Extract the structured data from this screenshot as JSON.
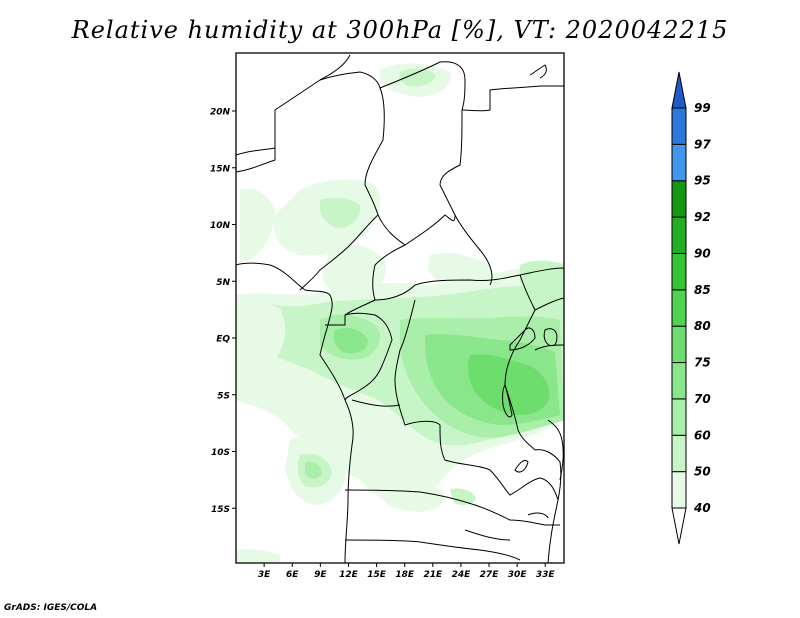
{
  "title": "Relative humidity at 300hPa [%], VT: 2020042215",
  "credit": "GrADS: IGES/COLA",
  "map": {
    "lat_labels": [
      {
        "label": "20N",
        "lat": 20
      },
      {
        "label": "15N",
        "lat": 15
      },
      {
        "label": "10N",
        "lat": 10
      },
      {
        "label": "5N",
        "lat": 5
      },
      {
        "label": "EQ",
        "lat": 0
      },
      {
        "label": "5S",
        "lat": -5
      },
      {
        "label": "10S",
        "lat": -10
      },
      {
        "label": "15S",
        "lat": -15
      }
    ],
    "lon_labels": [
      {
        "label": "3E",
        "lon": 3
      },
      {
        "label": "6E",
        "lon": 6
      },
      {
        "label": "9E",
        "lon": 9
      },
      {
        "label": "12E",
        "lon": 12
      },
      {
        "label": "15E",
        "lon": 15
      },
      {
        "label": "18E",
        "lon": 18
      },
      {
        "label": "21E",
        "lon": 21
      },
      {
        "label": "24E",
        "lon": 24
      },
      {
        "label": "27E",
        "lon": 27
      },
      {
        "label": "30E",
        "lon": 30
      },
      {
        "label": "33E",
        "lon": 33
      }
    ],
    "lon_range": [
      0,
      35
    ],
    "lat_range": [
      -20,
      25
    ]
  },
  "colorbar": {
    "levels": [
      "40",
      "50",
      "60",
      "70",
      "75",
      "80",
      "85",
      "90",
      "92",
      "95",
      "97",
      "99"
    ],
    "colors": [
      "#ffffff",
      "#e6fae6",
      "#c8f5c8",
      "#a9eea9",
      "#8ae68a",
      "#6ddd6d",
      "#4fd24f",
      "#33c333",
      "#22b022",
      "#149814",
      "#4196ee",
      "#2a78dc",
      "#1e5ac8"
    ]
  }
}
